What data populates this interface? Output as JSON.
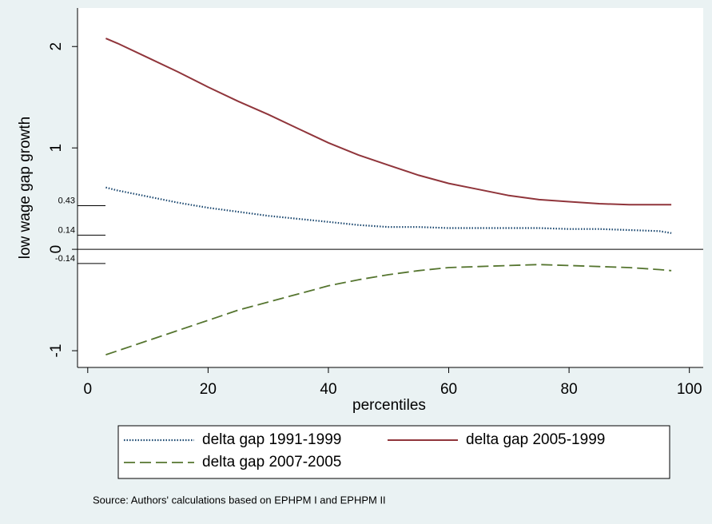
{
  "chart_data": {
    "type": "line",
    "xlabel": "percentiles",
    "ylabel": "low wage gap growth",
    "source": "Source: Authors' calculations based on EPHPM I and EPHPM II",
    "x": [
      3,
      5,
      10,
      15,
      20,
      25,
      30,
      35,
      40,
      45,
      50,
      55,
      60,
      65,
      70,
      75,
      80,
      85,
      90,
      95,
      97
    ],
    "series": [
      {
        "name": "delta gap 1991-1999",
        "color": "#1a476f",
        "dash": "dotted",
        "values": [
          0.61,
          0.58,
          0.52,
          0.46,
          0.41,
          0.37,
          0.33,
          0.3,
          0.27,
          0.24,
          0.22,
          0.22,
          0.21,
          0.21,
          0.21,
          0.21,
          0.2,
          0.2,
          0.19,
          0.18,
          0.16
        ]
      },
      {
        "name": "delta gap 2005-1999",
        "color": "#90353b",
        "dash": "solid",
        "values": [
          2.08,
          2.03,
          1.89,
          1.75,
          1.6,
          1.46,
          1.33,
          1.19,
          1.05,
          0.93,
          0.83,
          0.73,
          0.65,
          0.59,
          0.53,
          0.49,
          0.47,
          0.45,
          0.44,
          0.44,
          0.44
        ]
      },
      {
        "name": "delta gap 2007-2005",
        "color": "#55752f",
        "dash": "dashed",
        "values": [
          -1.04,
          -1.0,
          -0.9,
          -0.8,
          -0.7,
          -0.6,
          -0.52,
          -0.44,
          -0.36,
          -0.3,
          -0.25,
          -0.21,
          -0.18,
          -0.17,
          -0.16,
          -0.15,
          -0.16,
          -0.17,
          -0.18,
          -0.2,
          -0.21
        ]
      }
    ],
    "xlim": [
      -1.7,
      102.3
    ],
    "ylim": [
      -1.165,
      2.38
    ],
    "xticks": [
      0,
      20,
      40,
      60,
      80,
      100
    ],
    "yticks": [
      -1,
      0,
      1,
      2
    ],
    "extra_yticks": [
      0.43,
      0.14,
      -0.14
    ],
    "hline": 0
  }
}
